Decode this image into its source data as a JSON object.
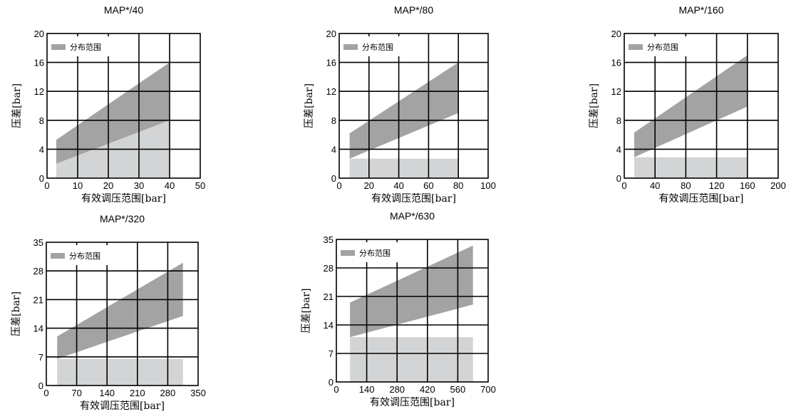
{
  "legend_label": "分布范围",
  "colors": {
    "band": "#a3a3a4",
    "base": "#d3d4d5",
    "grid": "#000000"
  },
  "chart_data": [
    {
      "type": "area",
      "title": "MAP*/40",
      "xlabel": "有效调压范围[bar]",
      "ylabel": "压差[bar]",
      "xlim": [
        0,
        50
      ],
      "ylim": [
        0,
        20
      ],
      "xticks": [
        0,
        10,
        20,
        30,
        40,
        50
      ],
      "yticks": [
        0,
        4,
        8,
        12,
        16,
        20
      ],
      "legend": "top-left",
      "series": [
        {
          "name": "分布范围",
          "x": [
            3,
            40
          ],
          "upper": [
            5.3,
            16
          ],
          "lower": [
            2,
            8
          ]
        }
      ],
      "baseline": {
        "x": [
          3,
          40
        ],
        "upper": [
          2,
          8
        ]
      }
    },
    {
      "type": "area",
      "title": "MAP*/80",
      "xlabel": "有效调压范围[bar]",
      "ylabel": "压差[bar]",
      "xlim": [
        0,
        100
      ],
      "ylim": [
        0,
        20
      ],
      "xticks": [
        0,
        20,
        40,
        60,
        80,
        100
      ],
      "yticks": [
        0,
        4,
        8,
        12,
        16,
        20
      ],
      "legend": "top-left",
      "series": [
        {
          "name": "分布范围",
          "x": [
            7,
            80
          ],
          "upper": [
            6.2,
            16
          ],
          "lower": [
            2.7,
            9
          ]
        }
      ],
      "baseline": {
        "x": [
          7,
          80
        ],
        "upper": [
          2.7,
          2.7
        ]
      }
    },
    {
      "type": "area",
      "title": "MAP*/160",
      "xlabel": "有效调压范围[bar]",
      "ylabel": "压差[bar]",
      "xlim": [
        0,
        200
      ],
      "ylim": [
        0,
        20
      ],
      "xticks": [
        0,
        40,
        80,
        120,
        160,
        200
      ],
      "yticks": [
        0,
        4,
        8,
        12,
        16,
        20
      ],
      "legend": "top-left",
      "series": [
        {
          "name": "分布范围",
          "x": [
            13,
            160
          ],
          "upper": [
            6.3,
            17
          ],
          "lower": [
            2.9,
            9.9
          ]
        }
      ],
      "baseline": {
        "x": [
          13,
          160
        ],
        "upper": [
          2.9,
          2.9
        ]
      }
    },
    {
      "type": "area",
      "title": "MAP*/320",
      "xlabel": "有效调压范围[bar]",
      "ylabel": "压差[bar]",
      "xlim": [
        0,
        350
      ],
      "ylim": [
        0,
        35
      ],
      "xticks": [
        0,
        70,
        140,
        210,
        280,
        350
      ],
      "yticks": [
        0,
        7,
        14,
        21,
        28,
        35
      ],
      "legend": "top-left",
      "series": [
        {
          "name": "分布范围",
          "x": [
            25,
            315
          ],
          "upper": [
            12,
            30
          ],
          "lower": [
            6.5,
            17
          ]
        }
      ],
      "baseline": {
        "x": [
          25,
          315
        ],
        "upper": [
          6.5,
          6.5
        ]
      }
    },
    {
      "type": "area",
      "title": "MAP*/630",
      "xlabel": "有效调压范围[bar]",
      "ylabel": "压差[bar]",
      "xlim": [
        0,
        700
      ],
      "ylim": [
        0,
        35
      ],
      "xticks": [
        0,
        140,
        280,
        420,
        560,
        700
      ],
      "yticks": [
        0,
        7,
        14,
        21,
        28,
        35
      ],
      "legend": "top-left",
      "series": [
        {
          "name": "分布范围",
          "x": [
            63,
            630
          ],
          "upper": [
            19.5,
            33.5
          ],
          "lower": [
            11,
            19
          ]
        }
      ],
      "baseline": {
        "x": [
          63,
          630
        ],
        "upper": [
          11,
          11
        ]
      }
    }
  ]
}
